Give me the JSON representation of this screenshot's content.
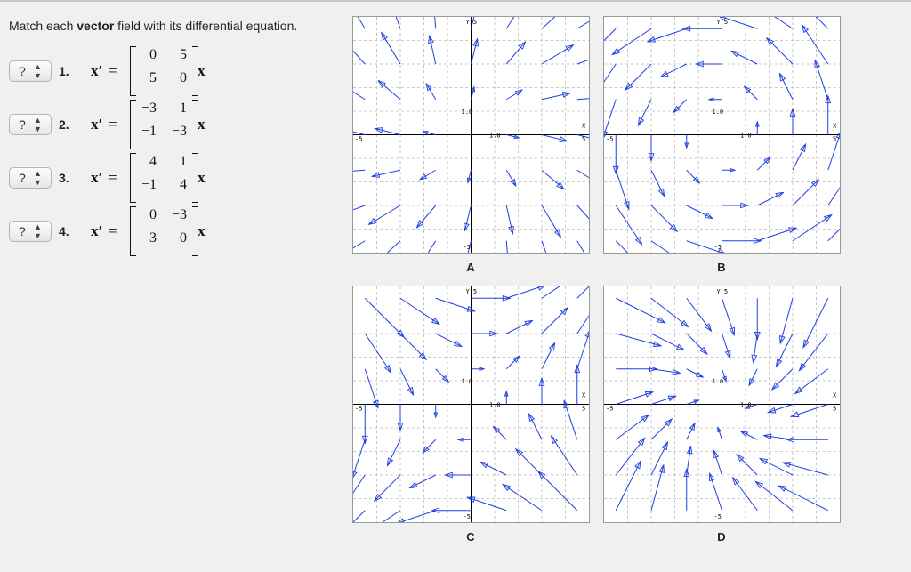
{
  "prompt": {
    "pre": "Match each ",
    "bold": "vector",
    "post": " field with its differential equation."
  },
  "questions": [
    {
      "select": "?",
      "number": "1.",
      "matrix": [
        [
          "0",
          "5"
        ],
        [
          "5",
          "0"
        ]
      ]
    },
    {
      "select": "?",
      "number": "2.",
      "matrix": [
        [
          "−3",
          "1"
        ],
        [
          "−1",
          "−3"
        ]
      ]
    },
    {
      "select": "?",
      "number": "3.",
      "matrix": [
        [
          "4",
          "1"
        ],
        [
          "−1",
          "4"
        ]
      ]
    },
    {
      "select": "?",
      "number": "4.",
      "matrix": [
        [
          "0",
          "−3"
        ],
        [
          "3",
          "0"
        ]
      ]
    }
  ],
  "eq_lhs": "x′",
  "eq_sign": "=",
  "eq_rhs": "x",
  "panels": [
    {
      "label": "A",
      "matrix": [
        [
          4,
          1
        ],
        [
          -1,
          4
        ]
      ]
    },
    {
      "label": "B",
      "matrix": [
        [
          0,
          -3
        ],
        [
          3,
          0
        ]
      ]
    },
    {
      "label": "C",
      "matrix": [
        [
          0,
          5
        ],
        [
          5,
          0
        ]
      ]
    },
    {
      "label": "D",
      "matrix": [
        [
          -3,
          1
        ],
        [
          -1,
          -3
        ]
      ]
    }
  ],
  "axis_labels": {
    "y": "Y",
    "x": "X",
    "ymax": "5",
    "ymin": "-5",
    "xmin": "-5",
    "xmax": "5",
    "tick": "1.0"
  },
  "colors": {
    "arrow": "#1f3fe0",
    "grid": "#b8b8b8",
    "axis": "#000000"
  }
}
